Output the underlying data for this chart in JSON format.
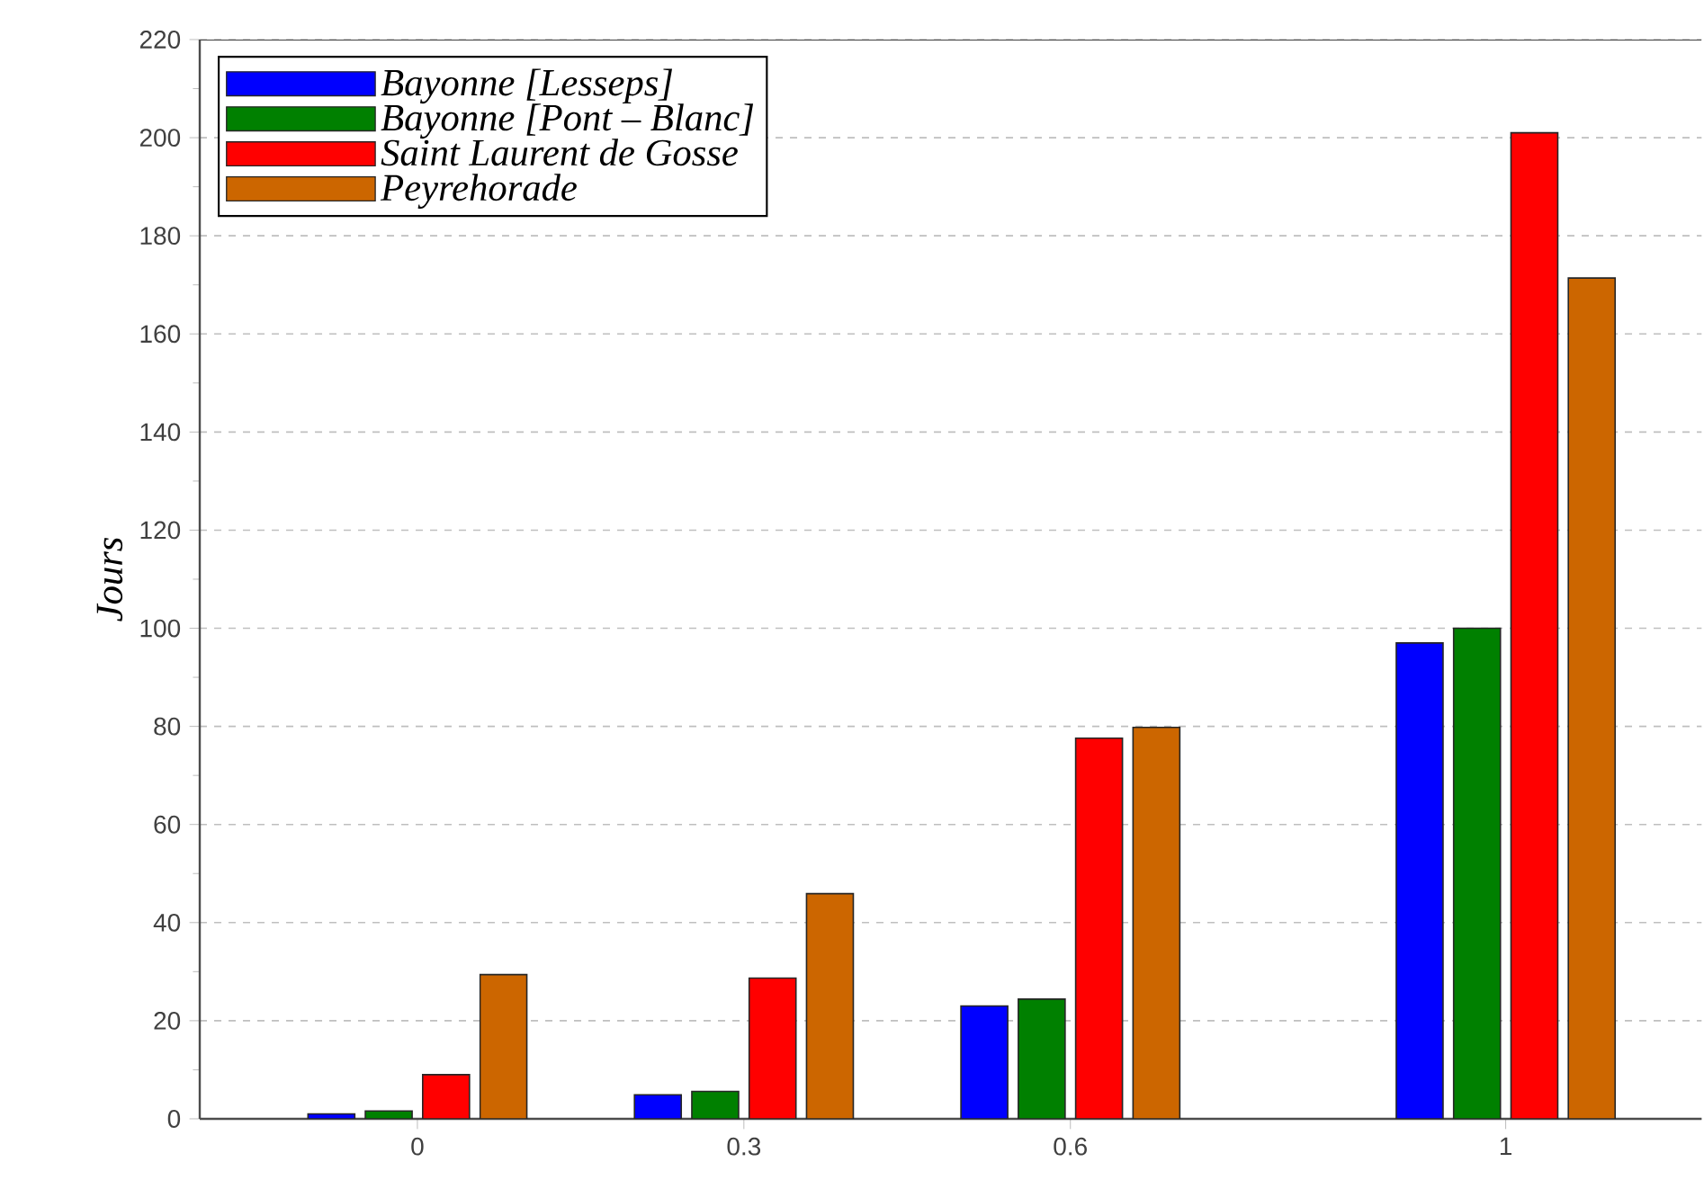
{
  "chart_data": {
    "type": "bar",
    "ylabel": "Jours",
    "x": [
      0,
      0.3,
      0.6,
      1
    ],
    "series": [
      {
        "name": "Bayonne [Lesseps]",
        "color": "#0000ff",
        "values": [
          1,
          4.9,
          23,
          97
        ]
      },
      {
        "name": "Bayonne [Pont – Blanc]",
        "color": "#008000",
        "values": [
          1.6,
          5.6,
          24.4,
          100
        ]
      },
      {
        "name": "Saint Laurent de Gosse",
        "color": "#ff0000",
        "values": [
          9,
          28.7,
          77.6,
          201
        ]
      },
      {
        "name": "Peyrehorade",
        "color": "#cc6600",
        "values": [
          29.4,
          45.9,
          79.8,
          171.4
        ]
      }
    ],
    "xlim": [
      -0.2,
      1.18
    ],
    "xticks": [
      0,
      0.3,
      0.6,
      1
    ],
    "ylim": [
      0,
      220
    ],
    "yticks": [
      0,
      20,
      40,
      60,
      80,
      100,
      120,
      140,
      160,
      180,
      200,
      220
    ],
    "grid": "y",
    "legend": "top left"
  }
}
